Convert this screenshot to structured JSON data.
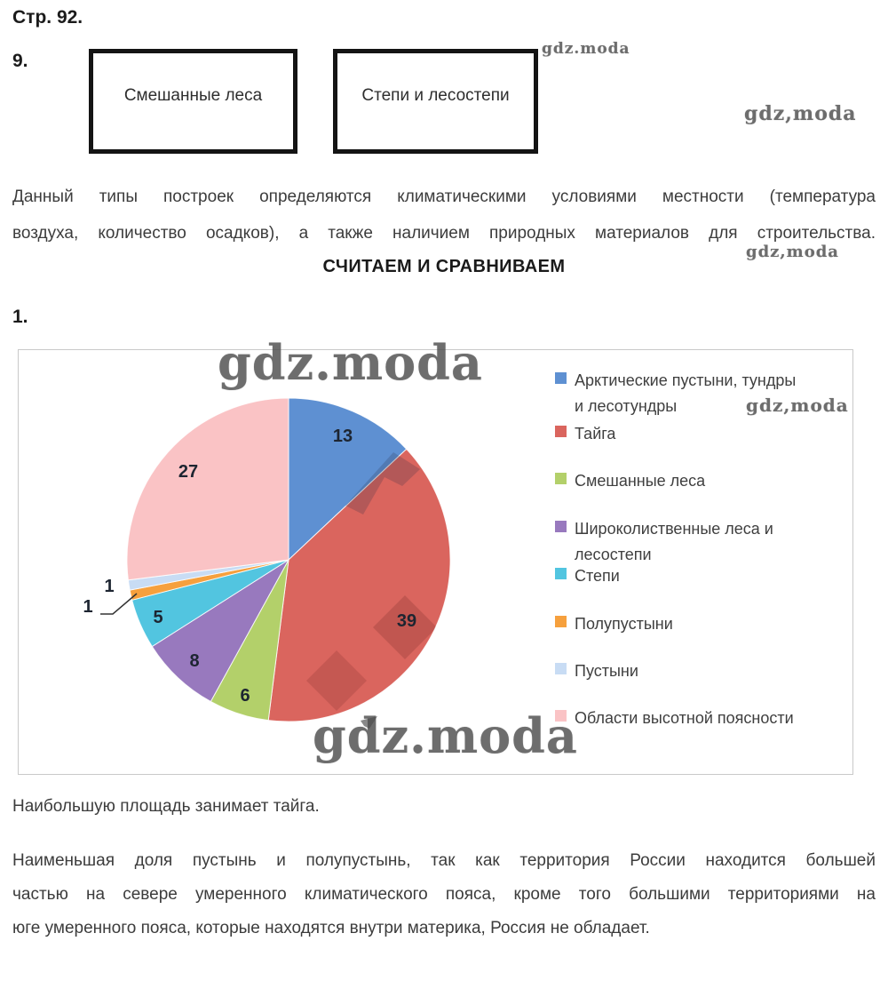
{
  "page": {
    "label": "Стр. 92."
  },
  "task9": {
    "number": "9.",
    "boxes": [
      {
        "label": "Смешанные леса"
      },
      {
        "label": "Степи и лесостепи"
      }
    ],
    "paragraph_lines": [
      "Данный типы построек определяются климатическими условиями местности (температура",
      "воздуха, количество осадков), а также наличием природных материалов для строительства."
    ]
  },
  "section_heading": "СЧИТАЕМ И СРАВНИВАЕМ",
  "task1": {
    "number": "1."
  },
  "chart_data": {
    "type": "pie",
    "title": "",
    "unit": "percent",
    "start_angle_deg": 0,
    "direction": "clockwise",
    "legend_position": "right",
    "categories": [
      "Арктические пустыни, тундры и лесотундры",
      "Тайга",
      "Смешанные леса",
      "Широколиственные леса и лесостепи",
      "Степи",
      "Полупустыни",
      "Пустыни",
      "Области высотной поясности"
    ],
    "values": [
      13,
      39,
      6,
      8,
      5,
      1,
      1,
      27
    ],
    "colors": [
      "#5E90D2",
      "#DA655E",
      "#B3D06A",
      "#9879BE",
      "#52C5E0",
      "#F6A03D",
      "#C8DCF4",
      "#FAC3C5"
    ],
    "legend_lines": [
      [
        "Арктические пустыни, тундры",
        "и лесотундры"
      ],
      [
        "Тайга"
      ],
      [
        "Смешанные леса"
      ],
      [
        "Широколиственные леса и",
        "лесостепи"
      ],
      [
        "Степи"
      ],
      [
        "Полупустыни"
      ],
      [
        "Пустыни"
      ],
      [
        "Области высотной поясности"
      ]
    ]
  },
  "answers": {
    "line1": "Наибольшую площадь занимает тайга.",
    "para_lines": [
      "Наименьшая доля пустынь и полупустынь, так как территория России находится большей",
      "частью на севере умеренного климатического пояса, кроме того большими территориями на",
      "юге умеренного пояса, которые находятся внутри материка, Россия не обладает."
    ]
  },
  "watermarks": [
    "gdz.moda",
    "gdz,moda",
    "gdz,moda",
    "gdz.moda",
    "gdz,moda",
    "gdz.moda"
  ]
}
